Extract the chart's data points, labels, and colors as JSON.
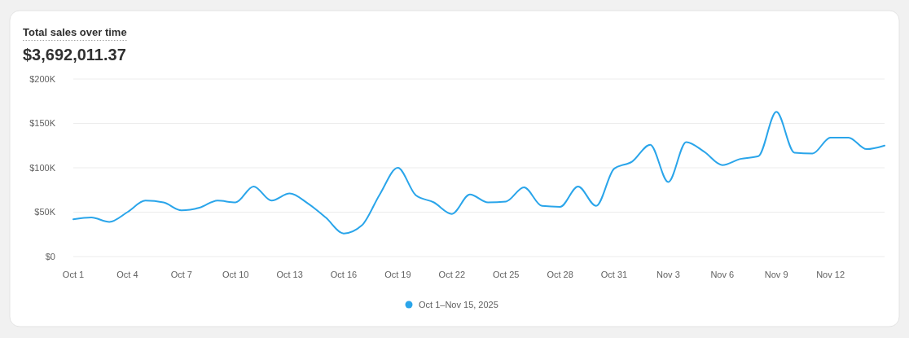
{
  "chart_data": {
    "type": "line",
    "title": "Total sales over time",
    "subtitle": "$3,692,011.37",
    "x": [
      "2025-10-01",
      "2025-10-02",
      "2025-10-03",
      "2025-10-04",
      "2025-10-05",
      "2025-10-06",
      "2025-10-07",
      "2025-10-08",
      "2025-10-09",
      "2025-10-10",
      "2025-10-11",
      "2025-10-12",
      "2025-10-13",
      "2025-10-14",
      "2025-10-15",
      "2025-10-16",
      "2025-10-17",
      "2025-10-18",
      "2025-10-19",
      "2025-10-20",
      "2025-10-21",
      "2025-10-22",
      "2025-10-23",
      "2025-10-24",
      "2025-10-25",
      "2025-10-26",
      "2025-10-27",
      "2025-10-28",
      "2025-10-29",
      "2025-10-30",
      "2025-10-31",
      "2025-11-01",
      "2025-11-02",
      "2025-11-03",
      "2025-11-04",
      "2025-11-05",
      "2025-11-06",
      "2025-11-07",
      "2025-11-08",
      "2025-11-09",
      "2025-11-10",
      "2025-11-11",
      "2025-11-12",
      "2025-11-13",
      "2025-11-14",
      "2025-11-15"
    ],
    "series": [
      {
        "name": "Oct 1–Nov 15, 2025",
        "color": "#2aa5ea",
        "values": [
          42000,
          44000,
          39000,
          50000,
          63000,
          61000,
          52000,
          55000,
          63000,
          61000,
          79000,
          63000,
          71000,
          60000,
          44000,
          26000,
          35000,
          70000,
          100000,
          69000,
          61000,
          48000,
          70000,
          61000,
          62000,
          78000,
          57000,
          56000,
          79000,
          57000,
          99000,
          107000,
          126000,
          84000,
          129000,
          118000,
          103000,
          110000,
          113000,
          163000,
          117000,
          116000,
          134000,
          134000,
          121000,
          125000
        ]
      }
    ],
    "xlim": [
      "2025-10-01",
      "2025-11-15"
    ],
    "xticks": [
      {
        "value": "2025-10-01",
        "label": "Oct 1"
      },
      {
        "value": "2025-10-04",
        "label": "Oct 4"
      },
      {
        "value": "2025-10-07",
        "label": "Oct 7"
      },
      {
        "value": "2025-10-10",
        "label": "Oct 10"
      },
      {
        "value": "2025-10-13",
        "label": "Oct 13"
      },
      {
        "value": "2025-10-16",
        "label": "Oct 16"
      },
      {
        "value": "2025-10-19",
        "label": "Oct 19"
      },
      {
        "value": "2025-10-22",
        "label": "Oct 22"
      },
      {
        "value": "2025-10-25",
        "label": "Oct 25"
      },
      {
        "value": "2025-10-28",
        "label": "Oct 28"
      },
      {
        "value": "2025-10-31",
        "label": "Oct 31"
      },
      {
        "value": "2025-11-03",
        "label": "Nov 3"
      },
      {
        "value": "2025-11-06",
        "label": "Nov 6"
      },
      {
        "value": "2025-11-09",
        "label": "Nov 9"
      },
      {
        "value": "2025-11-12",
        "label": "Nov 12"
      }
    ],
    "ylim": [
      0,
      200000
    ],
    "yticks": [
      {
        "value": 0,
        "label": "$0"
      },
      {
        "value": 50000,
        "label": "$50K"
      },
      {
        "value": 100000,
        "label": "$100K"
      },
      {
        "value": 150000,
        "label": "$150K"
      },
      {
        "value": 200000,
        "label": "$200K"
      }
    ],
    "grid": "y",
    "legend": "bottom",
    "marker": "none",
    "line_style": "solid"
  }
}
